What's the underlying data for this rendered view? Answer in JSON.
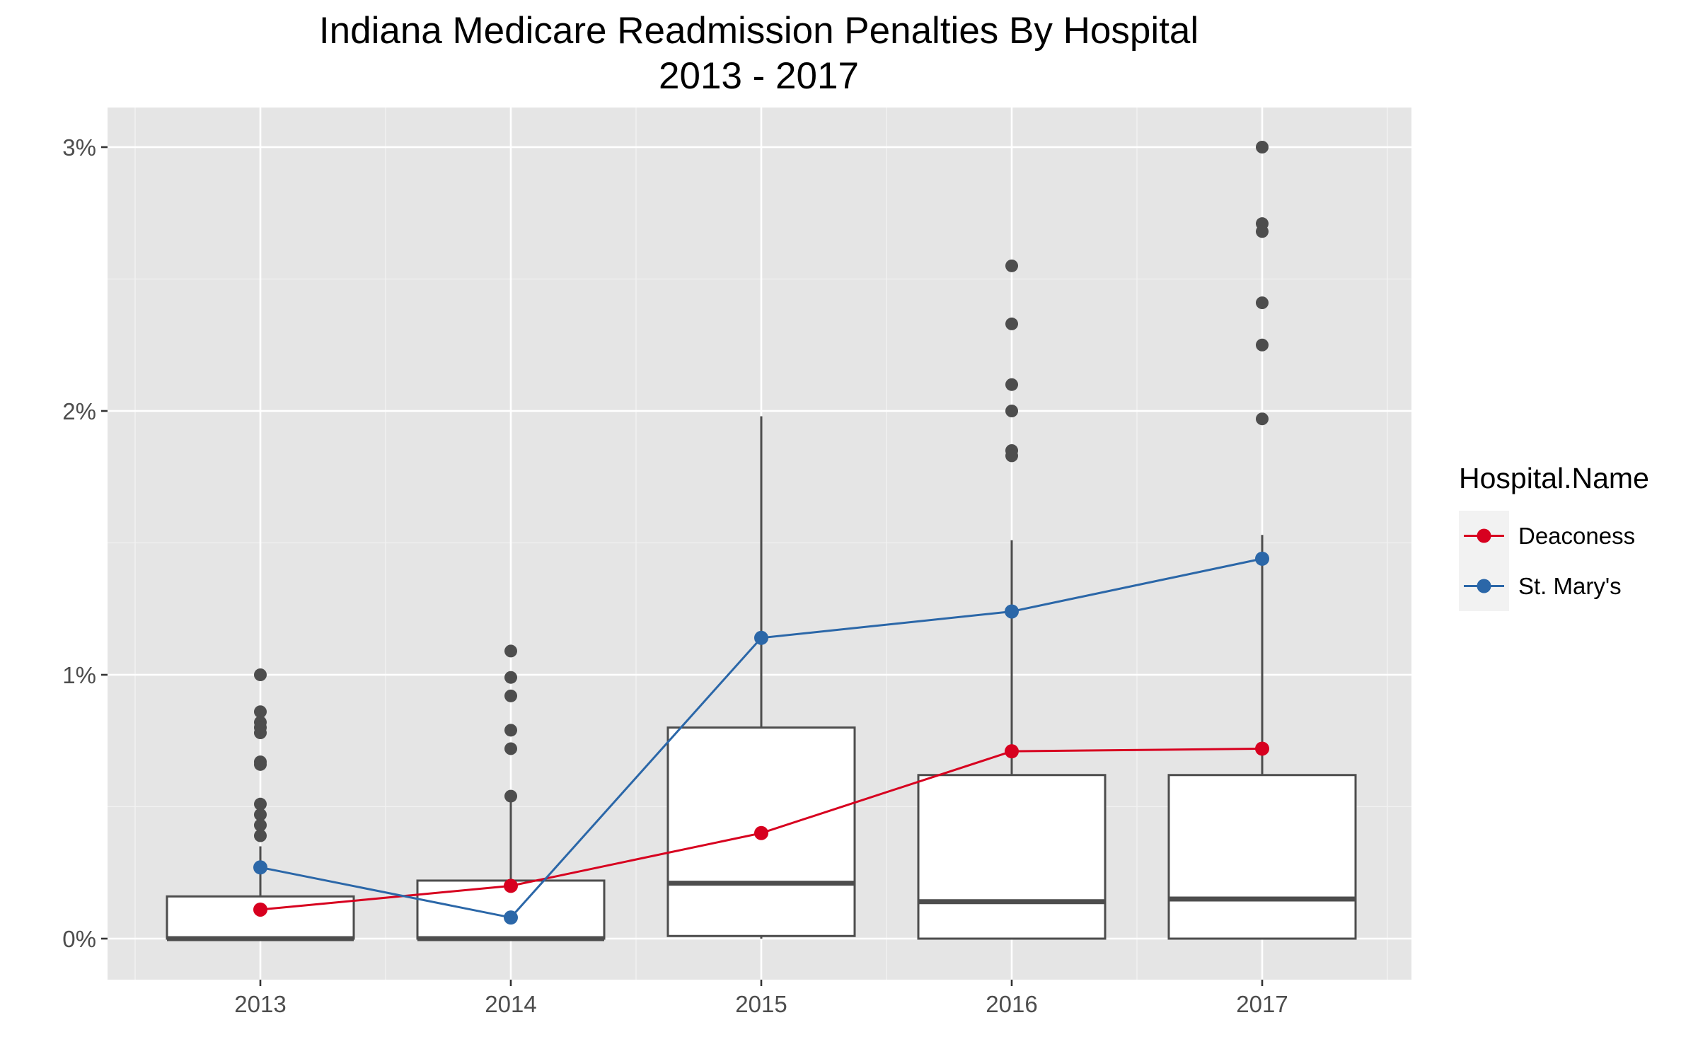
{
  "chart_data": {
    "type": "boxplot",
    "title": "Indiana Medicare Readmission Penalties By Hospital",
    "subtitle": "2013 - 2017",
    "categories": [
      "2013",
      "2014",
      "2015",
      "2016",
      "2017"
    ],
    "y_ticks": [
      {
        "value": 0,
        "label": "0%"
      },
      {
        "value": 1,
        "label": "1%"
      },
      {
        "value": 2,
        "label": "2%"
      },
      {
        "value": 3,
        "label": "3%"
      }
    ],
    "ylim": [
      -0.15,
      3.15
    ],
    "grid": true,
    "boxes": [
      {
        "category": "2013",
        "lower": 0,
        "q1": 0,
        "median": 0,
        "q3": 0.16,
        "upper": 0.35,
        "outliers": [
          1.0,
          0.86,
          0.82,
          0.8,
          0.78,
          0.67,
          0.66,
          0.51,
          0.47,
          0.43,
          0.39
        ]
      },
      {
        "category": "2014",
        "lower": 0,
        "q1": 0,
        "median": 0,
        "q3": 0.22,
        "upper": 0.52,
        "outliers": [
          1.09,
          0.99,
          0.92,
          0.79,
          0.72,
          0.54
        ]
      },
      {
        "category": "2015",
        "lower": 0.0,
        "q1": 0.01,
        "median": 0.21,
        "q3": 0.8,
        "upper": 1.98,
        "outliers": []
      },
      {
        "category": "2016",
        "lower": 0,
        "q1": 0,
        "median": 0.14,
        "q3": 0.62,
        "upper": 1.51,
        "outliers": [
          2.55,
          2.33,
          2.1,
          2.0,
          1.85,
          1.83
        ]
      },
      {
        "category": "2017",
        "lower": 0,
        "q1": 0,
        "median": 0.15,
        "q3": 0.62,
        "upper": 1.53,
        "outliers": [
          3.0,
          2.71,
          2.68,
          2.41,
          2.25,
          1.97
        ]
      }
    ],
    "legend": {
      "title": "Hospital.Name",
      "position": "right"
    },
    "series": [
      {
        "name": "Deaconess",
        "color": "#d7001f",
        "values": [
          0.11,
          0.2,
          0.4,
          0.71,
          0.72
        ]
      },
      {
        "name": "St. Mary's",
        "color": "#2b67a8",
        "values": [
          0.27,
          0.08,
          1.14,
          1.24,
          1.44
        ]
      }
    ]
  }
}
